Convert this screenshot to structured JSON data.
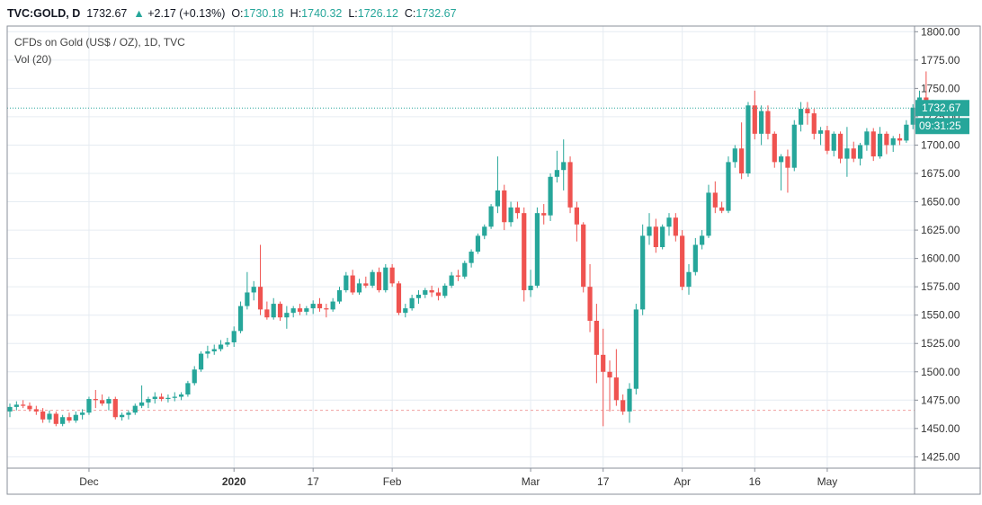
{
  "header": {
    "symbol": "TVC:GOLD, D",
    "last": "1732.67",
    "change_arrow": "▲",
    "change": "+2.17 (+0.13%)",
    "open_label": "O:",
    "open": "1730.18",
    "high_label": "H:",
    "high": "1740.32",
    "low_label": "L:",
    "low": "1726.12",
    "close_label": "C:",
    "close": "1732.67"
  },
  "legend": {
    "line1": "CFDs on Gold (US$ / OZ), 1D, TVC",
    "line2": "Vol (20)"
  },
  "price_tag": {
    "price": "1732.67",
    "countdown": "09:31:25"
  },
  "colors": {
    "up": "#26a69a",
    "down": "#ef5350",
    "grid": "#e6ecf2",
    "axis": "#8a8f99"
  },
  "chart_data": {
    "type": "candlestick",
    "title": "CFDs on Gold (US$ / OZ), 1D, TVC",
    "ylim": [
      1415,
      1805
    ],
    "y_ticks": [
      1425,
      1450,
      1475,
      1500,
      1525,
      1550,
      1575,
      1600,
      1625,
      1650,
      1675,
      1700,
      1725,
      1750,
      1775,
      1800
    ],
    "x_ticks": [
      {
        "label": "Dec",
        "index": 12
      },
      {
        "label": "2020",
        "index": 34
      },
      {
        "label": "17",
        "index": 46
      },
      {
        "label": "Feb",
        "index": 58
      },
      {
        "label": "Mar",
        "index": 79
      },
      {
        "label": "17",
        "index": 90
      },
      {
        "label": "Apr",
        "index": 102
      },
      {
        "label": "16",
        "index": 113
      },
      {
        "label": "May",
        "index": 124
      }
    ],
    "last_price": 1732.67,
    "reference_line": 1466,
    "candles": [
      [
        1465,
        1472,
        1460,
        1469
      ],
      [
        1469,
        1474,
        1466,
        1471
      ],
      [
        1471,
        1475,
        1468,
        1470
      ],
      [
        1470,
        1473,
        1465,
        1467
      ],
      [
        1467,
        1470,
        1462,
        1465
      ],
      [
        1465,
        1468,
        1455,
        1458
      ],
      [
        1458,
        1466,
        1455,
        1463
      ],
      [
        1463,
        1465,
        1452,
        1454
      ],
      [
        1454,
        1462,
        1452,
        1460
      ],
      [
        1460,
        1464,
        1455,
        1457
      ],
      [
        1457,
        1465,
        1455,
        1462
      ],
      [
        1462,
        1467,
        1458,
        1464
      ],
      [
        1464,
        1478,
        1462,
        1476
      ],
      [
        1476,
        1484,
        1468,
        1475
      ],
      [
        1475,
        1480,
        1470,
        1472
      ],
      [
        1472,
        1478,
        1466,
        1476
      ],
      [
        1476,
        1478,
        1458,
        1460
      ],
      [
        1460,
        1464,
        1457,
        1462
      ],
      [
        1462,
        1466,
        1458,
        1464
      ],
      [
        1464,
        1472,
        1462,
        1470
      ],
      [
        1470,
        1488,
        1468,
        1473
      ],
      [
        1473,
        1478,
        1468,
        1476
      ],
      [
        1476,
        1482,
        1472,
        1478
      ],
      [
        1478,
        1481,
        1474,
        1476
      ],
      [
        1476,
        1480,
        1473,
        1477
      ],
      [
        1477,
        1482,
        1474,
        1478
      ],
      [
        1478,
        1482,
        1475,
        1480
      ],
      [
        1480,
        1492,
        1478,
        1490
      ],
      [
        1490,
        1505,
        1488,
        1502
      ],
      [
        1502,
        1518,
        1500,
        1516
      ],
      [
        1516,
        1523,
        1512,
        1518
      ],
      [
        1518,
        1524,
        1515,
        1520
      ],
      [
        1520,
        1528,
        1518,
        1524
      ],
      [
        1524,
        1530,
        1522,
        1526
      ],
      [
        1526,
        1540,
        1522,
        1536
      ],
      [
        1536,
        1562,
        1534,
        1558
      ],
      [
        1558,
        1588,
        1555,
        1570
      ],
      [
        1570,
        1580,
        1563,
        1575
      ],
      [
        1575,
        1612,
        1550,
        1555
      ],
      [
        1555,
        1562,
        1546,
        1548
      ],
      [
        1548,
        1565,
        1546,
        1560
      ],
      [
        1560,
        1562,
        1545,
        1548
      ],
      [
        1548,
        1558,
        1538,
        1552
      ],
      [
        1552,
        1558,
        1548,
        1556
      ],
      [
        1556,
        1560,
        1550,
        1553
      ],
      [
        1553,
        1558,
        1550,
        1556
      ],
      [
        1556,
        1563,
        1551,
        1560
      ],
      [
        1560,
        1565,
        1553,
        1556
      ],
      [
        1556,
        1560,
        1548,
        1555
      ],
      [
        1555,
        1565,
        1553,
        1562
      ],
      [
        1562,
        1575,
        1560,
        1572
      ],
      [
        1572,
        1588,
        1570,
        1585
      ],
      [
        1585,
        1590,
        1568,
        1570
      ],
      [
        1570,
        1582,
        1568,
        1578
      ],
      [
        1578,
        1584,
        1574,
        1576
      ],
      [
        1576,
        1590,
        1574,
        1588
      ],
      [
        1588,
        1592,
        1570,
        1572
      ],
      [
        1572,
        1595,
        1570,
        1592
      ],
      [
        1592,
        1595,
        1575,
        1578
      ],
      [
        1578,
        1580,
        1550,
        1552
      ],
      [
        1552,
        1560,
        1548,
        1556
      ],
      [
        1556,
        1568,
        1554,
        1565
      ],
      [
        1565,
        1572,
        1560,
        1568
      ],
      [
        1568,
        1574,
        1565,
        1572
      ],
      [
        1572,
        1576,
        1566,
        1570
      ],
      [
        1570,
        1574,
        1563,
        1567
      ],
      [
        1567,
        1578,
        1565,
        1576
      ],
      [
        1576,
        1588,
        1574,
        1585
      ],
      [
        1585,
        1590,
        1580,
        1584
      ],
      [
        1584,
        1598,
        1582,
        1596
      ],
      [
        1596,
        1608,
        1592,
        1606
      ],
      [
        1606,
        1622,
        1604,
        1620
      ],
      [
        1620,
        1630,
        1617,
        1628
      ],
      [
        1628,
        1648,
        1626,
        1646
      ],
      [
        1646,
        1690,
        1640,
        1660
      ],
      [
        1660,
        1665,
        1625,
        1632
      ],
      [
        1632,
        1650,
        1628,
        1645
      ],
      [
        1645,
        1650,
        1635,
        1640
      ],
      [
        1640,
        1645,
        1562,
        1572
      ],
      [
        1572,
        1590,
        1566,
        1576
      ],
      [
        1576,
        1645,
        1574,
        1640
      ],
      [
        1640,
        1648,
        1630,
        1638
      ],
      [
        1638,
        1675,
        1633,
        1672
      ],
      [
        1672,
        1695,
        1667,
        1678
      ],
      [
        1678,
        1705,
        1660,
        1685
      ],
      [
        1685,
        1690,
        1640,
        1645
      ],
      [
        1645,
        1650,
        1615,
        1630
      ],
      [
        1630,
        1632,
        1570,
        1575
      ],
      [
        1575,
        1595,
        1535,
        1545
      ],
      [
        1545,
        1560,
        1490,
        1515
      ],
      [
        1515,
        1538,
        1452,
        1500
      ],
      [
        1500,
        1510,
        1465,
        1495
      ],
      [
        1495,
        1520,
        1470,
        1475
      ],
      [
        1475,
        1480,
        1462,
        1465
      ],
      [
        1465,
        1490,
        1455,
        1485
      ],
      [
        1485,
        1560,
        1480,
        1555
      ],
      [
        1555,
        1630,
        1550,
        1620
      ],
      [
        1620,
        1640,
        1612,
        1628
      ],
      [
        1628,
        1635,
        1605,
        1610
      ],
      [
        1610,
        1630,
        1608,
        1628
      ],
      [
        1628,
        1640,
        1620,
        1636
      ],
      [
        1636,
        1640,
        1615,
        1620
      ],
      [
        1620,
        1625,
        1572,
        1575
      ],
      [
        1575,
        1595,
        1568,
        1588
      ],
      [
        1588,
        1618,
        1585,
        1612
      ],
      [
        1612,
        1625,
        1608,
        1620
      ],
      [
        1620,
        1665,
        1618,
        1658
      ],
      [
        1658,
        1668,
        1640,
        1645
      ],
      [
        1645,
        1650,
        1640,
        1642
      ],
      [
        1642,
        1690,
        1640,
        1685
      ],
      [
        1685,
        1700,
        1680,
        1697
      ],
      [
        1697,
        1720,
        1670,
        1675
      ],
      [
        1675,
        1738,
        1672,
        1735
      ],
      [
        1735,
        1748,
        1705,
        1710
      ],
      [
        1710,
        1735,
        1700,
        1730
      ],
      [
        1730,
        1735,
        1705,
        1710
      ],
      [
        1710,
        1712,
        1680,
        1685
      ],
      [
        1685,
        1692,
        1660,
        1690
      ],
      [
        1690,
        1696,
        1658,
        1680
      ],
      [
        1680,
        1722,
        1677,
        1718
      ],
      [
        1718,
        1738,
        1712,
        1732
      ],
      [
        1732,
        1738,
        1718,
        1728
      ],
      [
        1728,
        1732,
        1705,
        1710
      ],
      [
        1710,
        1716,
        1700,
        1713
      ],
      [
        1713,
        1717,
        1692,
        1695
      ],
      [
        1695,
        1712,
        1690,
        1710
      ],
      [
        1710,
        1712,
        1684,
        1688
      ],
      [
        1688,
        1716,
        1672,
        1697
      ],
      [
        1697,
        1703,
        1685,
        1688
      ],
      [
        1688,
        1702,
        1682,
        1700
      ],
      [
        1700,
        1715,
        1695,
        1712
      ],
      [
        1712,
        1715,
        1686,
        1690
      ],
      [
        1690,
        1716,
        1688,
        1710
      ],
      [
        1710,
        1712,
        1692,
        1700
      ],
      [
        1700,
        1708,
        1694,
        1706
      ],
      [
        1706,
        1710,
        1700,
        1704
      ],
      [
        1704,
        1722,
        1702,
        1718
      ],
      [
        1718,
        1736,
        1714,
        1733
      ],
      [
        1733,
        1748,
        1728,
        1742
      ],
      [
        1742,
        1765,
        1727,
        1730
      ],
      [
        1730,
        1740,
        1726,
        1733
      ]
    ]
  }
}
